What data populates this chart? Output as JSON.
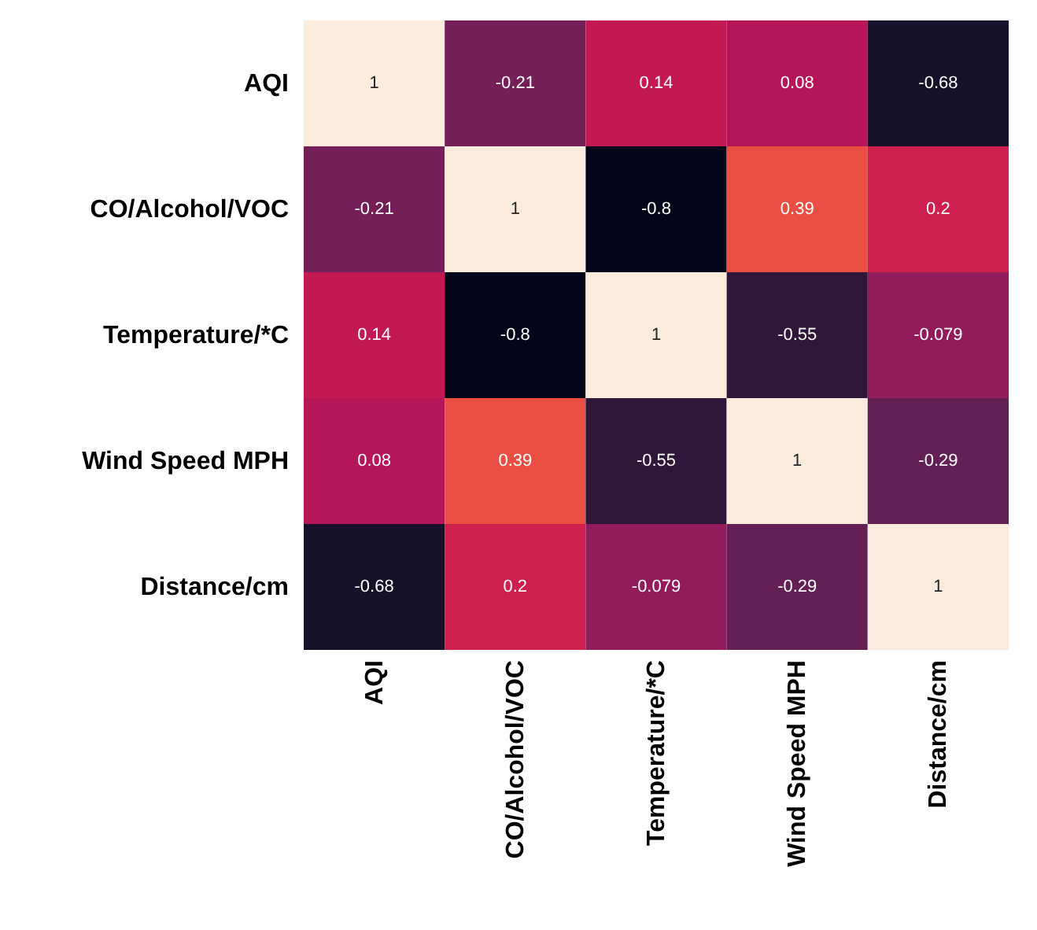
{
  "chart_data": {
    "type": "heatmap",
    "categories": [
      "AQI",
      "CO/Alcohol/VOC",
      "Temperature/*C",
      "Wind Speed MPH",
      "Distance/cm"
    ],
    "y_categories": [
      "AQI",
      "CO/Alcohol/VOC",
      "Temperature/*C",
      "Wind Speed MPH",
      "Distance/cm"
    ],
    "cells": [
      [
        1,
        -0.21,
        0.14,
        0.08,
        -0.68
      ],
      [
        -0.21,
        1,
        -0.8,
        0.39,
        0.2
      ],
      [
        0.14,
        -0.8,
        1,
        -0.55,
        -0.079
      ],
      [
        0.08,
        0.39,
        -0.55,
        1,
        -0.29
      ],
      [
        -0.68,
        0.2,
        -0.079,
        -0.29,
        1
      ]
    ],
    "data_labels": true
  }
}
